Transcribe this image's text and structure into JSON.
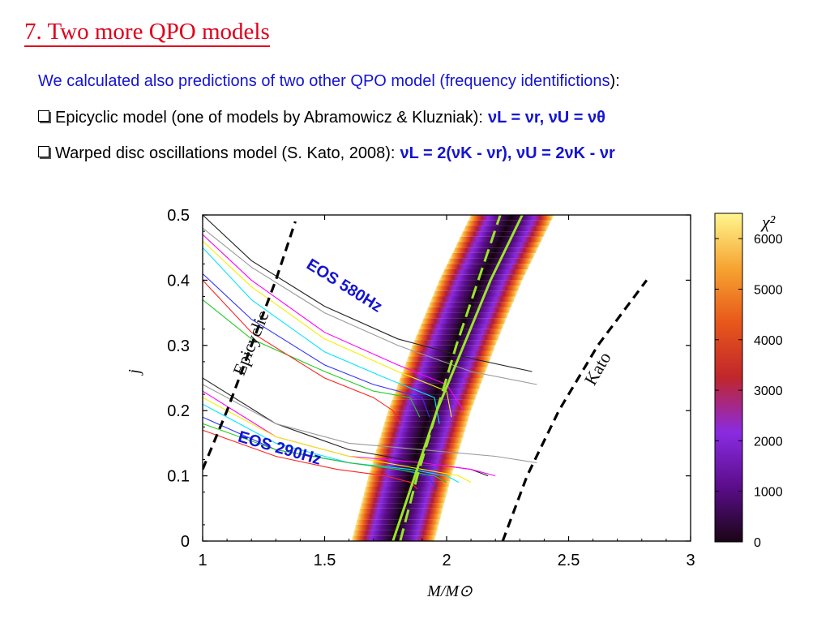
{
  "slide": {
    "title": "7. Two more QPO models",
    "intro_blue": "We calculated also predictions of two other QPO model (frequency identifictions",
    "intro_black": "):",
    "bullet1_text": "Epicyclic model (one of models by Abramowicz & Kluzniak):",
    "bullet1_formula": "νL = νr, νU = νθ",
    "bullet2_text": "Warped disc oscillations model (S. Kato, 2008):",
    "bullet2_formula": "νL = 2(νK - νr), νU = 2νK - νr"
  },
  "chart_data": {
    "type": "heatmap",
    "xlabel": "M/M⊙",
    "ylabel": "j",
    "xlim": [
      1.0,
      3.0
    ],
    "ylim": [
      0.0,
      0.5
    ],
    "xticks": [
      1,
      1.5,
      2,
      2.5,
      3
    ],
    "xtick_labels": [
      "1",
      "1.5",
      "2",
      "2.5",
      "3"
    ],
    "yticks": [
      0,
      0.1,
      0.2,
      0.3,
      0.4,
      0.5
    ],
    "ytick_labels": [
      "0",
      "0.1",
      "0.2",
      "0.3",
      "0.4",
      "0.5"
    ],
    "colorbar": {
      "label": "χ²",
      "range": [
        0,
        6500
      ],
      "ticks": [
        0,
        1000,
        2000,
        3000,
        4000,
        5000,
        6000
      ],
      "tick_labels": [
        "0",
        "1000",
        "2000",
        "3000",
        "4000",
        "5000",
        "6000"
      ],
      "colormap": [
        "#1a0515",
        "#5b0d8a",
        "#8a2be2",
        "#c0262b",
        "#e8571a",
        "#f6a431",
        "#fff68f"
      ]
    },
    "chi2_band": {
      "center_line": [
        [
          1.78,
          0.0
        ],
        [
          1.85,
          0.1
        ],
        [
          1.93,
          0.2
        ],
        [
          2.03,
          0.3
        ],
        [
          2.14,
          0.4
        ],
        [
          2.27,
          0.5
        ]
      ],
      "half_width_m": 0.17
    },
    "model_curves": [
      {
        "name": "Epicyclic",
        "style": "black-dashed",
        "points": [
          [
            1.0,
            0.11
          ],
          [
            1.1,
            0.2
          ],
          [
            1.2,
            0.3
          ],
          [
            1.3,
            0.4
          ],
          [
            1.38,
            0.49
          ]
        ]
      },
      {
        "name": "Kato",
        "style": "black-dashed",
        "points": [
          [
            2.23,
            0.0
          ],
          [
            2.33,
            0.1
          ],
          [
            2.46,
            0.2
          ],
          [
            2.62,
            0.3
          ],
          [
            2.82,
            0.4
          ]
        ]
      },
      {
        "name": "",
        "style": "green-solid",
        "points": [
          [
            1.78,
            0.0
          ],
          [
            1.87,
            0.1
          ],
          [
            1.96,
            0.2
          ],
          [
            2.07,
            0.3
          ],
          [
            2.18,
            0.4
          ],
          [
            2.31,
            0.5
          ]
        ]
      },
      {
        "name": "",
        "style": "green-dashed",
        "points": [
          [
            1.81,
            0.0
          ],
          [
            1.88,
            0.1
          ],
          [
            1.96,
            0.2
          ],
          [
            2.04,
            0.3
          ],
          [
            2.13,
            0.4
          ],
          [
            2.22,
            0.5
          ]
        ]
      }
    ],
    "eos_labels": [
      "EOS 580Hz",
      "EOS 290Hz"
    ],
    "eos_groups": [
      {
        "name": "EOS 580Hz",
        "curves": [
          {
            "color": "#222222",
            "points": [
              [
                1.0,
                0.5
              ],
              [
                1.2,
                0.43
              ],
              [
                1.5,
                0.36
              ],
              [
                1.8,
                0.31
              ],
              [
                2.1,
                0.28
              ],
              [
                2.35,
                0.26
              ]
            ]
          },
          {
            "color": "#999999",
            "points": [
              [
                1.0,
                0.48
              ],
              [
                1.2,
                0.42
              ],
              [
                1.5,
                0.35
              ],
              [
                1.8,
                0.3
              ],
              [
                2.1,
                0.26
              ],
              [
                2.37,
                0.24
              ]
            ]
          },
          {
            "color": "#ff00ff",
            "points": [
              [
                1.0,
                0.47
              ],
              [
                1.2,
                0.4
              ],
              [
                1.5,
                0.32
              ],
              [
                1.8,
                0.27
              ],
              [
                2.0,
                0.24
              ],
              [
                2.07,
                0.2
              ]
            ]
          },
          {
            "color": "#f2f200",
            "points": [
              [
                1.0,
                0.46
              ],
              [
                1.2,
                0.39
              ],
              [
                1.5,
                0.31
              ],
              [
                1.8,
                0.26
              ],
              [
                2.0,
                0.23
              ],
              [
                2.02,
                0.19
              ]
            ]
          },
          {
            "color": "#00e5ff",
            "points": [
              [
                1.0,
                0.45
              ],
              [
                1.2,
                0.37
              ],
              [
                1.5,
                0.29
              ],
              [
                1.75,
                0.25
              ],
              [
                1.95,
                0.22
              ],
              [
                1.97,
                0.18
              ]
            ]
          },
          {
            "color": "#3333ff",
            "points": [
              [
                1.0,
                0.41
              ],
              [
                1.2,
                0.34
              ],
              [
                1.5,
                0.27
              ],
              [
                1.7,
                0.24
              ],
              [
                1.9,
                0.22
              ],
              [
                1.93,
                0.19
              ]
            ]
          },
          {
            "color": "#22cc22",
            "points": [
              [
                1.0,
                0.37
              ],
              [
                1.2,
                0.31
              ],
              [
                1.5,
                0.26
              ],
              [
                1.7,
                0.23
              ],
              [
                1.85,
                0.22
              ],
              [
                1.89,
                0.19
              ]
            ]
          },
          {
            "color": "#ff2222",
            "points": [
              [
                1.0,
                0.4
              ],
              [
                1.2,
                0.32
              ],
              [
                1.5,
                0.25
              ],
              [
                1.7,
                0.22
              ],
              [
                1.78,
                0.2
              ],
              [
                1.81,
                0.18
              ]
            ]
          }
        ]
      },
      {
        "name": "EOS 290Hz",
        "curves": [
          {
            "color": "#222222",
            "points": [
              [
                1.0,
                0.25
              ],
              [
                1.3,
                0.18
              ],
              [
                1.6,
                0.14
              ],
              [
                1.9,
                0.12
              ],
              [
                2.1,
                0.11
              ],
              [
                2.17,
                0.1
              ]
            ]
          },
          {
            "color": "#999999",
            "points": [
              [
                1.0,
                0.24
              ],
              [
                1.3,
                0.18
              ],
              [
                1.6,
                0.15
              ],
              [
                1.9,
                0.14
              ],
              [
                2.2,
                0.13
              ],
              [
                2.37,
                0.12
              ]
            ]
          },
          {
            "color": "#ff00ff",
            "points": [
              [
                1.0,
                0.23
              ],
              [
                1.3,
                0.16
              ],
              [
                1.6,
                0.13
              ],
              [
                1.9,
                0.12
              ],
              [
                2.1,
                0.11
              ],
              [
                2.2,
                0.1
              ]
            ]
          },
          {
            "color": "#f2f200",
            "points": [
              [
                1.0,
                0.22
              ],
              [
                1.3,
                0.16
              ],
              [
                1.6,
                0.13
              ],
              [
                1.9,
                0.11
              ],
              [
                2.05,
                0.1
              ],
              [
                2.1,
                0.09
              ]
            ]
          },
          {
            "color": "#00e5ff",
            "points": [
              [
                1.0,
                0.21
              ],
              [
                1.3,
                0.15
              ],
              [
                1.6,
                0.12
              ],
              [
                1.85,
                0.11
              ],
              [
                2.0,
                0.1
              ],
              [
                2.05,
                0.09
              ]
            ]
          },
          {
            "color": "#3333ff",
            "points": [
              [
                1.0,
                0.19
              ],
              [
                1.3,
                0.14
              ],
              [
                1.6,
                0.12
              ],
              [
                1.8,
                0.11
              ],
              [
                1.92,
                0.1
              ],
              [
                1.96,
                0.08
              ]
            ]
          },
          {
            "color": "#22cc22",
            "points": [
              [
                1.0,
                0.18
              ],
              [
                1.3,
                0.14
              ],
              [
                1.6,
                0.12
              ],
              [
                1.8,
                0.11
              ],
              [
                1.95,
                0.1
              ],
              [
                2.0,
                0.09
              ]
            ]
          },
          {
            "color": "#ff2222",
            "points": [
              [
                1.0,
                0.17
              ],
              [
                1.3,
                0.13
              ],
              [
                1.55,
                0.11
              ],
              [
                1.75,
                0.1
              ],
              [
                1.85,
                0.09
              ],
              [
                1.88,
                0.08
              ]
            ]
          }
        ]
      }
    ]
  }
}
